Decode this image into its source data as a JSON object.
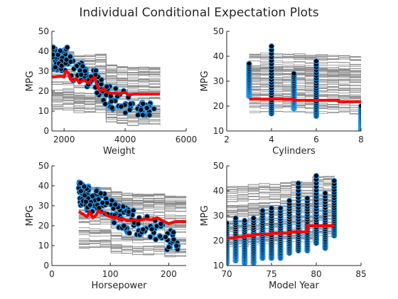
{
  "figure": {
    "title": "Individual Conditional Expectation Plots"
  },
  "chart_data": [
    {
      "id": "weight",
      "type": "line",
      "title": "",
      "xlabel": "Weight",
      "ylabel": "MPG",
      "xlim": [
        1600,
        6000
      ],
      "ylim": [
        0,
        50
      ],
      "xticks": [
        2000,
        4000,
        6000
      ],
      "yticks": [
        0,
        10,
        20,
        30,
        40,
        50
      ],
      "grid": false,
      "ice_range": [
        1613,
        5140
      ],
      "avg_curve": {
        "name": "average",
        "x": [
          1613,
          1900,
          2000,
          2050,
          2150,
          2200,
          2300,
          2400,
          2500,
          2600,
          2700,
          2800,
          2900,
          3000,
          3100,
          3200,
          3300,
          3400,
          3500,
          3700,
          3800,
          3900,
          4000,
          4100,
          4300,
          5140
        ],
        "y": [
          27,
          27.5,
          27,
          30,
          29,
          26,
          25,
          26.5,
          24,
          25.5,
          25,
          24,
          26,
          27,
          22,
          20,
          21,
          19.5,
          19,
          19,
          18.5,
          19,
          19.5,
          18,
          18.5,
          18.5
        ]
      },
      "obs_shape": "decreasing"
    },
    {
      "id": "cylinders",
      "type": "line",
      "title": "",
      "xlabel": "Cylinders",
      "ylabel": "MPG",
      "xlim": [
        2,
        8
      ],
      "ylim": [
        10,
        50
      ],
      "xticks": [
        2,
        4,
        6,
        8
      ],
      "yticks": [
        10,
        20,
        30,
        40,
        50
      ],
      "grid": false,
      "ice_range": [
        3,
        8
      ],
      "avg_curve": {
        "name": "average",
        "x": [
          3,
          5,
          5,
          7,
          7,
          8
        ],
        "y": [
          22.8,
          22.8,
          22.3,
          22.3,
          21.8,
          21.8
        ]
      },
      "obs_columns": [
        {
          "x": 3,
          "min": 24,
          "max": 37
        },
        {
          "x": 4,
          "min": 17,
          "max": 44
        },
        {
          "x": 5,
          "min": 19,
          "max": 33
        },
        {
          "x": 6,
          "min": 16,
          "max": 38
        },
        {
          "x": 8,
          "min": 9,
          "max": 20
        }
      ]
    },
    {
      "id": "horsepower",
      "type": "line",
      "title": "",
      "xlabel": "Horsepower",
      "ylabel": "MPG",
      "xlim": [
        0,
        230
      ],
      "ylim": [
        0,
        50
      ],
      "xticks": [
        0,
        100,
        200
      ],
      "yticks": [
        0,
        10,
        20,
        30,
        40,
        50
      ],
      "grid": false,
      "ice_range": [
        46,
        230
      ],
      "avg_curve": {
        "name": "average",
        "x": [
          46,
          55,
          60,
          65,
          70,
          75,
          80,
          85,
          90,
          95,
          100,
          105,
          110,
          115,
          120,
          130,
          140,
          150,
          160,
          170,
          180,
          190,
          200,
          210,
          230
        ],
        "y": [
          27,
          25.5,
          24.5,
          27,
          24,
          25,
          27.5,
          26.5,
          26.5,
          25,
          24.5,
          24,
          24.5,
          23,
          23.5,
          22.5,
          23,
          22.5,
          23.5,
          23,
          24,
          22.5,
          21,
          22,
          22
        ]
      },
      "obs_shape": "decreasing"
    },
    {
      "id": "modelyear",
      "type": "line",
      "title": "",
      "xlabel": "Model Year",
      "ylabel": "MPG",
      "xlim": [
        70,
        85
      ],
      "ylim": [
        10,
        50
      ],
      "xticks": [
        70,
        75,
        80,
        85
      ],
      "yticks": [
        10,
        20,
        30,
        40,
        50
      ],
      "grid": false,
      "ice_range": [
        70,
        82
      ],
      "avg_curve": {
        "name": "average",
        "x": [
          70,
          71,
          71,
          72,
          72,
          73,
          73,
          75,
          75,
          77,
          77,
          79,
          79,
          82
        ],
        "y": [
          21,
          21,
          21.5,
          21.5,
          22,
          22,
          22.5,
          22.5,
          23,
          23,
          23.5,
          23.5,
          26,
          26
        ]
      },
      "obs_columns": [
        {
          "x": 70,
          "min": 11,
          "max": 27
        },
        {
          "x": 71,
          "min": 12,
          "max": 29
        },
        {
          "x": 72,
          "min": 11,
          "max": 28
        },
        {
          "x": 73,
          "min": 11,
          "max": 29
        },
        {
          "x": 74,
          "min": 13,
          "max": 32
        },
        {
          "x": 75,
          "min": 13,
          "max": 33
        },
        {
          "x": 76,
          "min": 13,
          "max": 33
        },
        {
          "x": 77,
          "min": 15,
          "max": 36
        },
        {
          "x": 78,
          "min": 16,
          "max": 43
        },
        {
          "x": 79,
          "min": 16,
          "max": 37
        },
        {
          "x": 80,
          "min": 19,
          "max": 46
        },
        {
          "x": 81,
          "min": 17,
          "max": 39
        },
        {
          "x": 82,
          "min": 22,
          "max": 44
        }
      ]
    }
  ]
}
